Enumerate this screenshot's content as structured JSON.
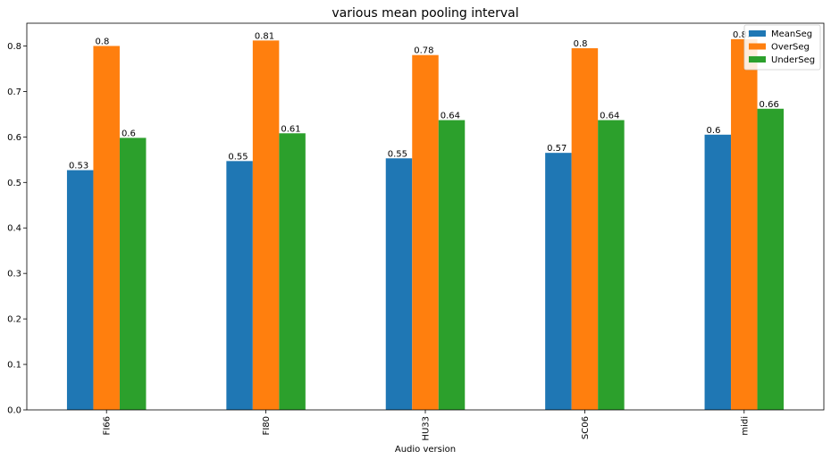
{
  "chart_data": {
    "type": "bar",
    "title": "various mean pooling interval",
    "xlabel": "Audio version",
    "ylabel": "",
    "categories": [
      "FI66",
      "FI80",
      "HU33",
      "SC06",
      "midi"
    ],
    "ylim": [
      0,
      0.85
    ],
    "yticks": [
      0.0,
      0.1,
      0.2,
      0.3,
      0.4,
      0.5,
      0.6,
      0.7,
      0.8
    ],
    "ytick_labels": [
      "0.0",
      "0.1",
      "0.2",
      "0.3",
      "0.4",
      "0.5",
      "0.6",
      "0.7",
      "0.8"
    ],
    "series": [
      {
        "name": "MeanSeg",
        "color": "#1f77b4",
        "values": [
          0.527,
          0.547,
          0.553,
          0.565,
          0.605
        ],
        "labels": [
          "0.53",
          "0.55",
          "0.55",
          "0.57",
          "0.6"
        ]
      },
      {
        "name": "OverSeg",
        "color": "#ff7f0e",
        "values": [
          0.8,
          0.812,
          0.78,
          0.795,
          0.815
        ],
        "labels": [
          "0.8",
          "0.81",
          "0.78",
          "0.8",
          "0.82"
        ]
      },
      {
        "name": "UnderSeg",
        "color": "#2ca02c",
        "values": [
          0.598,
          0.608,
          0.637,
          0.637,
          0.662
        ],
        "labels": [
          "0.6",
          "0.61",
          "0.64",
          "0.64",
          "0.66"
        ]
      }
    ],
    "grid": false,
    "legend_position": "top-right"
  }
}
